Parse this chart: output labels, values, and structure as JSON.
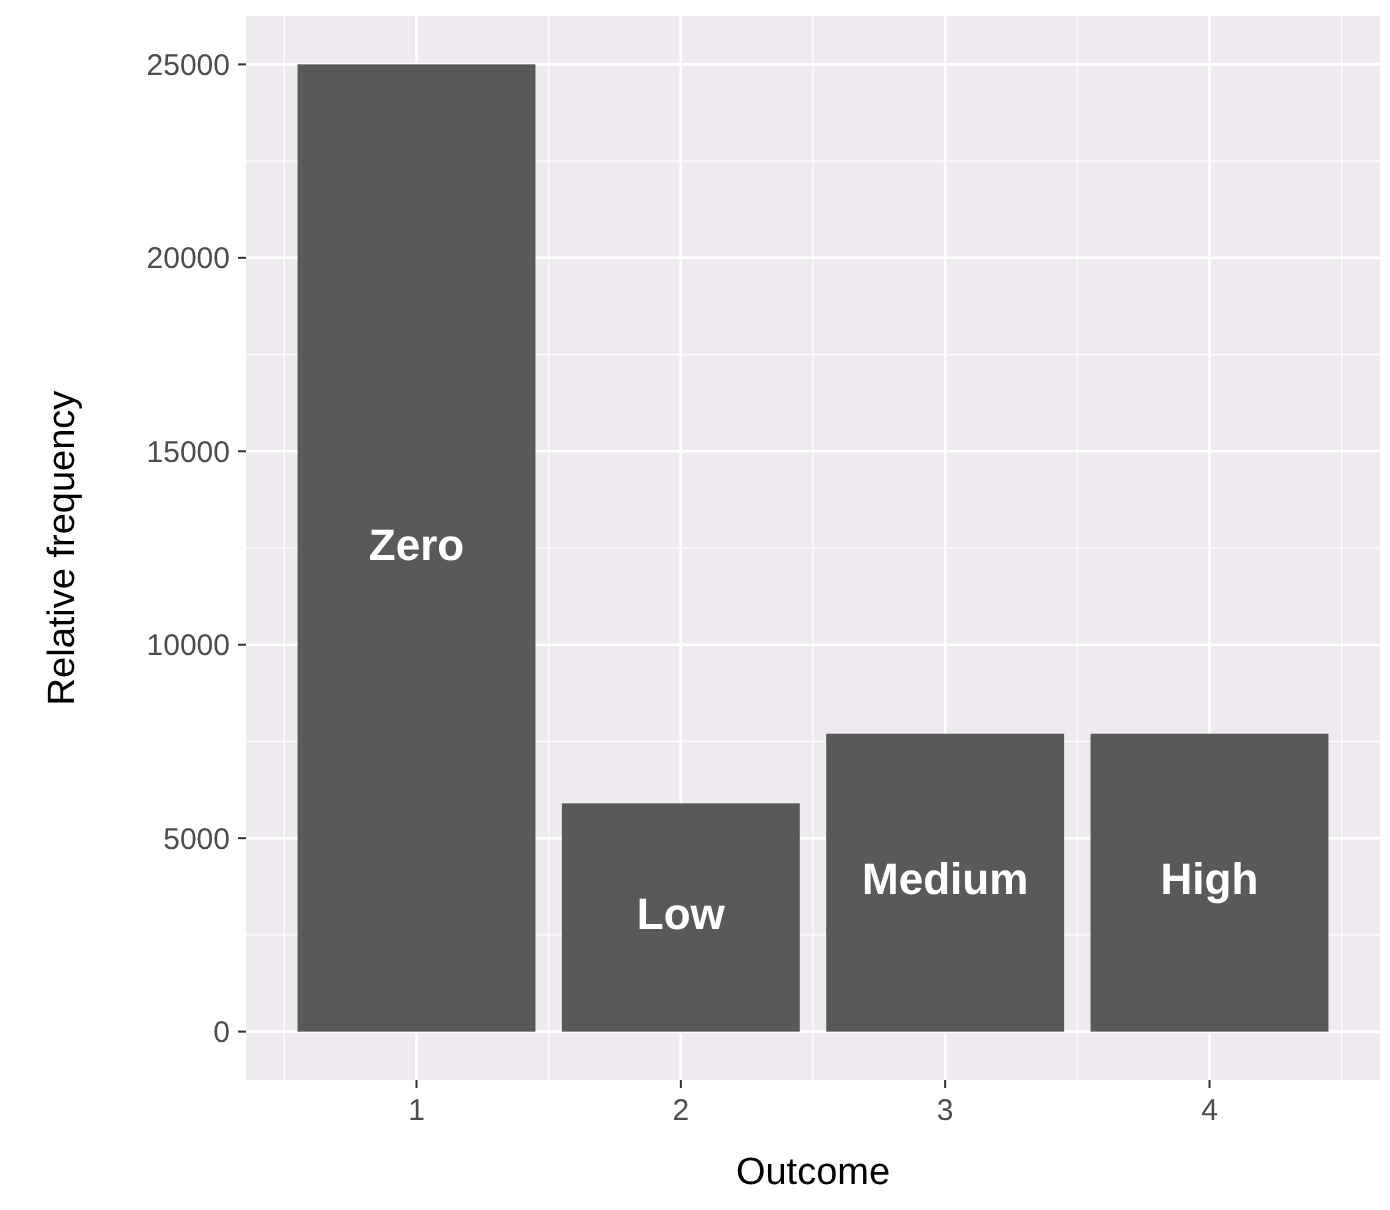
{
  "chart_data": {
    "type": "bar",
    "xlabel": "Outcome",
    "ylabel": "Relative frequency",
    "x": [
      1,
      2,
      3,
      4
    ],
    "values": [
      25000,
      5900,
      7700,
      7700
    ],
    "color": "#595959",
    "xlim": [
      0.355,
      4.645
    ],
    "xticks": [
      1,
      2,
      3,
      4
    ],
    "ylim": [
      -1250,
      26250
    ],
    "yticks": [
      0,
      5000,
      10000,
      15000,
      20000,
      25000
    ],
    "grid": true,
    "annotations": [
      "Zero",
      "Low",
      "Medium",
      "High"
    ]
  }
}
